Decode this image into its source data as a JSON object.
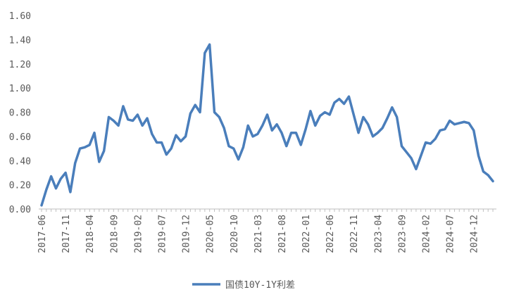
{
  "chart_data": {
    "type": "line",
    "title": "",
    "xlabel": "",
    "ylabel": "",
    "ylim": [
      0,
      1.6
    ],
    "y_ticks": [
      "0.00",
      "0.20",
      "0.40",
      "0.60",
      "0.80",
      "1.00",
      "1.20",
      "1.40",
      "1.60"
    ],
    "x_tick_labels": [
      "2017-06",
      "2017-11",
      "2018-04",
      "2018-09",
      "2019-02",
      "2019-07",
      "2019-12",
      "2020-05",
      "2020-10",
      "2021-03",
      "2021-08",
      "2022-01",
      "2022-06",
      "2022-11",
      "2023-04",
      "2023-09",
      "2024-02",
      "2024-07",
      "2024-12"
    ],
    "grid": false,
    "legend_position": "bottom",
    "series": [
      {
        "name": "国债10Y-1Y利差",
        "color": "#4A7EBB",
        "x": [
          "2017-06",
          "2017-07",
          "2017-08",
          "2017-09",
          "2017-10",
          "2017-11",
          "2017-12",
          "2018-01",
          "2018-02",
          "2018-03",
          "2018-04",
          "2018-05",
          "2018-06",
          "2018-07",
          "2018-08",
          "2018-09",
          "2018-10",
          "2018-11",
          "2018-12",
          "2019-01",
          "2019-02",
          "2019-03",
          "2019-04",
          "2019-05",
          "2019-06",
          "2019-07",
          "2019-08",
          "2019-09",
          "2019-10",
          "2019-11",
          "2019-12",
          "2020-01",
          "2020-02",
          "2020-03",
          "2020-04",
          "2020-05",
          "2020-06",
          "2020-07",
          "2020-08",
          "2020-09",
          "2020-10",
          "2020-11",
          "2020-12",
          "2021-01",
          "2021-02",
          "2021-03",
          "2021-04",
          "2021-05",
          "2021-06",
          "2021-07",
          "2021-08",
          "2021-09",
          "2021-10",
          "2021-11",
          "2021-12",
          "2022-01",
          "2022-02",
          "2022-03",
          "2022-04",
          "2022-05",
          "2022-06",
          "2022-07",
          "2022-08",
          "2022-09",
          "2022-10",
          "2022-11",
          "2022-12",
          "2023-01",
          "2023-02",
          "2023-03",
          "2023-04",
          "2023-05",
          "2023-06",
          "2023-07",
          "2023-08",
          "2023-09",
          "2023-10",
          "2023-11",
          "2023-12",
          "2024-01",
          "2024-02",
          "2024-03",
          "2024-04",
          "2024-05",
          "2024-06",
          "2024-07",
          "2024-08",
          "2024-09",
          "2024-10",
          "2024-11",
          "2024-12",
          "2025-01",
          "2025-02",
          "2025-03",
          "2025-04"
        ],
        "values": [
          0.03,
          0.16,
          0.27,
          0.17,
          0.25,
          0.3,
          0.14,
          0.38,
          0.5,
          0.51,
          0.53,
          0.63,
          0.39,
          0.48,
          0.76,
          0.73,
          0.69,
          0.85,
          0.74,
          0.73,
          0.78,
          0.69,
          0.75,
          0.62,
          0.55,
          0.55,
          0.45,
          0.5,
          0.61,
          0.56,
          0.6,
          0.79,
          0.86,
          0.8,
          1.29,
          1.36,
          0.8,
          0.76,
          0.67,
          0.52,
          0.5,
          0.41,
          0.51,
          0.69,
          0.6,
          0.62,
          0.69,
          0.78,
          0.65,
          0.7,
          0.63,
          0.52,
          0.63,
          0.63,
          0.53,
          0.66,
          0.81,
          0.69,
          0.77,
          0.8,
          0.78,
          0.88,
          0.91,
          0.87,
          0.93,
          0.78,
          0.63,
          0.76,
          0.7,
          0.6,
          0.63,
          0.67,
          0.75,
          0.84,
          0.76,
          0.52,
          0.47,
          0.42,
          0.33,
          0.44,
          0.55,
          0.54,
          0.58,
          0.65,
          0.66,
          0.73,
          0.7,
          0.71,
          0.72,
          0.71,
          0.65,
          0.44,
          0.31,
          0.28,
          0.23
        ]
      }
    ]
  }
}
